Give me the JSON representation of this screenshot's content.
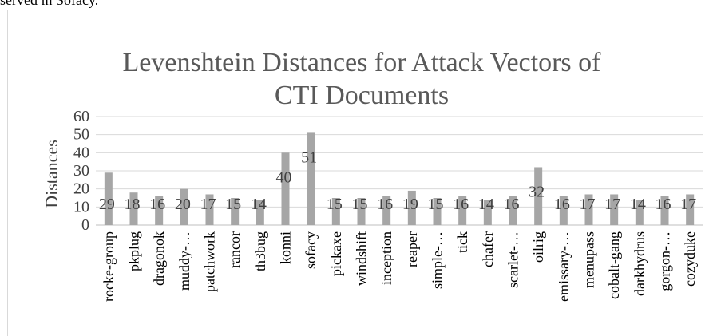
{
  "caption_fragment": "served in Sofacy.",
  "chart_data": {
    "type": "bar",
    "title_lines": [
      "Levenshtein Distances for Attack Vectors of",
      "CTI Documents"
    ],
    "xlabel": "",
    "ylabel": "Distances",
    "ylim": [
      0,
      60
    ],
    "yticks": [
      "0",
      "10",
      "20",
      "30",
      "40",
      "50",
      "60"
    ],
    "grid": true,
    "legend": "none",
    "bar_color": "#a6a6a6",
    "categories": [
      "rocke-group",
      "pkplug",
      "dragonok",
      "muddy-…",
      "patchwork",
      "rancor",
      "th3bug",
      "konni",
      "sofacy",
      "pickaxe",
      "windshift",
      "inception",
      "reaper",
      "simple-…",
      "tick",
      "chafer",
      "scarlet-…",
      "oilrig",
      "emissary-…",
      "menupass",
      "cobalt-gang",
      "darkhydrus",
      "gorgon-…",
      "cozyduke"
    ],
    "values": [
      29,
      18,
      16,
      20,
      17,
      15,
      14,
      40,
      51,
      15,
      15,
      16,
      19,
      15,
      16,
      14,
      16,
      32,
      16,
      17,
      17,
      14,
      16,
      17
    ],
    "data_labels": [
      "29",
      "18",
      "16",
      "20",
      "17",
      "15",
      "14",
      "40",
      "51",
      "15",
      "15",
      "16",
      "19",
      "15",
      "16",
      "14",
      "16",
      "32",
      "16",
      "17",
      "17",
      "14",
      "16",
      "17"
    ]
  }
}
